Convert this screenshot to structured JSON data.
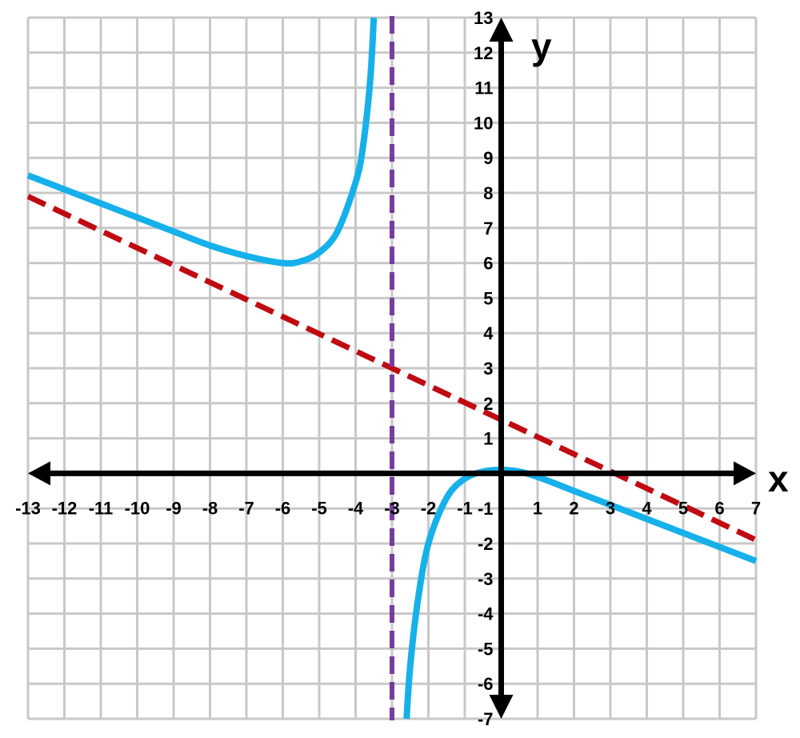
{
  "chart_data": {
    "type": "line",
    "xlim": [
      -13,
      7
    ],
    "ylim": [
      -7,
      13
    ],
    "grid": true,
    "xlabel": "x",
    "ylabel": "y",
    "x_ticks": [
      -13,
      -12,
      -11,
      -10,
      -9,
      -8,
      -7,
      -6,
      -5,
      -4,
      -3,
      -2,
      -1,
      1,
      2,
      3,
      4,
      5,
      6,
      7
    ],
    "y_ticks": [
      13,
      12,
      11,
      10,
      9,
      8,
      7,
      6,
      5,
      4,
      3,
      2,
      1,
      -1,
      -2,
      -3,
      -4,
      -5,
      -6,
      -7
    ],
    "series": [
      {
        "kind": "curve",
        "branches": [
          {
            "x": [
              -13,
              -12,
              -11,
              -10,
              -9,
              -8,
              -7,
              -6,
              -5.5,
              -5,
              -4.5,
              -4,
              -3.8,
              -3.6,
              -3.5
            ],
            "y": [
              8.5,
              8.1,
              7.7,
              7.3,
              6.9,
              6.5,
              6.2,
              6.0,
              6.05,
              6.3,
              6.9,
              8.3,
              9.3,
              11.2,
              13.0
            ]
          },
          {
            "x": [
              -2.6,
              -2.5,
              -2.3,
              -2,
              -1.5,
              -1,
              -0.5,
              0,
              0.5,
              1,
              2,
              3,
              4,
              5,
              6,
              7
            ],
            "y": [
              -7.0,
              -5.5,
              -3.7,
              -2.0,
              -0.7,
              -0.15,
              0.05,
              0.1,
              0.05,
              -0.1,
              -0.5,
              -0.9,
              -1.3,
              -1.7,
              -2.1,
              -2.5
            ]
          }
        ],
        "color": "#16b0ea"
      },
      {
        "kind": "slant-asymptote",
        "x": [
          -13,
          7
        ],
        "y": [
          7.9,
          -1.9
        ],
        "color": "#bf0a12"
      },
      {
        "kind": "vertical-asymptote",
        "x": -3,
        "color": "#7a3ba0"
      }
    ],
    "colors": {
      "grid": "#c8c8c8",
      "axes": "#000000"
    }
  }
}
